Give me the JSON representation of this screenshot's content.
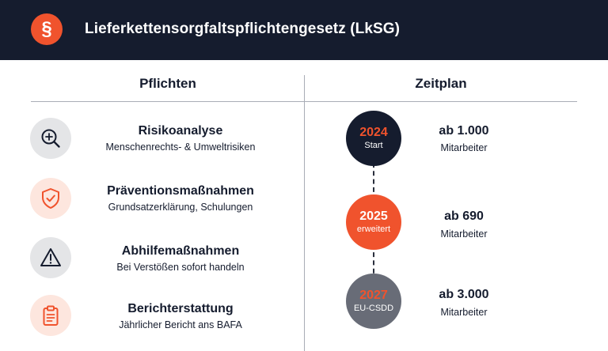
{
  "header": {
    "logo_symbol": "§",
    "title": "Lieferkettensorgfaltspflichtengesetz (LkSG)"
  },
  "columns": {
    "left": "Pflichten",
    "right": "Zeitplan"
  },
  "duties": [
    {
      "icon": "magnifier-icon",
      "title": "Risikoanalyse",
      "subtitle": "Menschenrechts- & Umweltrisiken"
    },
    {
      "icon": "shield-check-icon",
      "title": "Präventionsmaßnahmen",
      "subtitle": "Grundsatzerklärung, Schulungen"
    },
    {
      "icon": "warning-triangle-icon",
      "title": "Abhilfemaßnahmen",
      "subtitle": "Bei Verstößen sofort handeln"
    },
    {
      "icon": "clipboard-icon",
      "title": "Berichterstattung",
      "subtitle": "Jährlicher Bericht ans BAFA"
    }
  ],
  "timeline": [
    {
      "year": "2024",
      "label": "Start",
      "threshold": "ab 1.000",
      "unit": "Mitarbeiter"
    },
    {
      "year": "2025",
      "label": "erweitert",
      "threshold": "ab 690",
      "unit": "Mitarbeiter"
    },
    {
      "year": "2027",
      "label": "EU-CSDD",
      "threshold": "ab 3.000",
      "unit": "Mitarbeiter"
    }
  ],
  "colors": {
    "navy": "#151c2e",
    "accent": "#f0532d",
    "gray": "#686c77"
  }
}
